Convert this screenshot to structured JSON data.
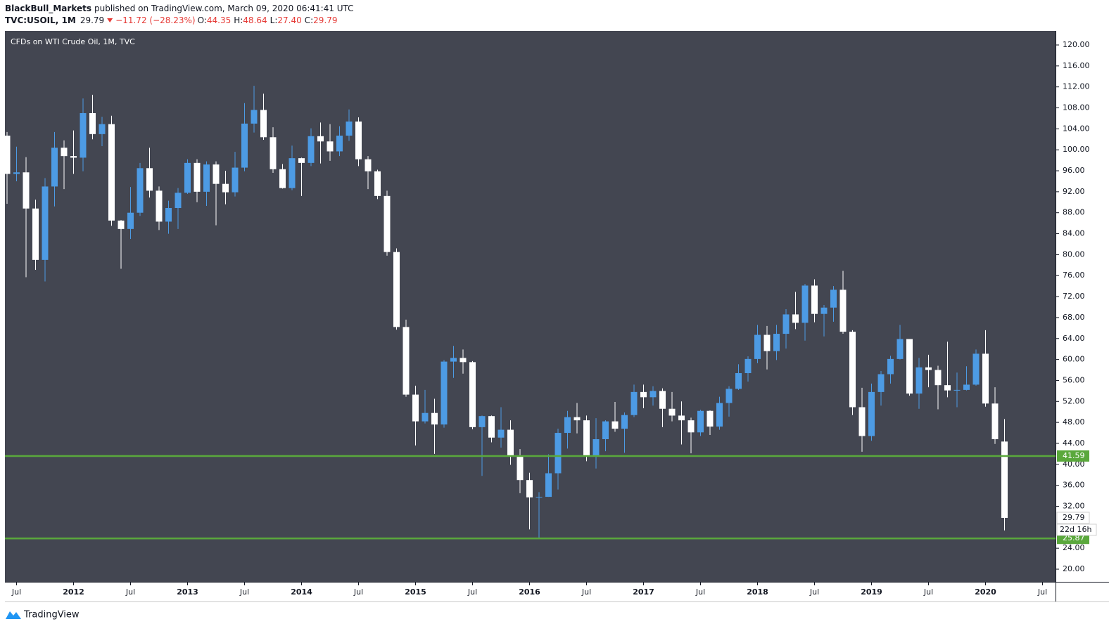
{
  "header": {
    "author": "BlackBull_Markets",
    "published": "published on TradingView.com, March 09, 2020 06:41:41 UTC",
    "symbol": "TVC:USOIL, 1M",
    "price": "29.79",
    "change": "−11.72 (−28.23%)",
    "ohlc": [
      {
        "k": "O:",
        "v": "44.35"
      },
      {
        "k": "H:",
        "v": "48.64"
      },
      {
        "k": "L:",
        "v": "27.40"
      },
      {
        "k": "C:",
        "v": "29.79"
      }
    ]
  },
  "chart_data": {
    "type": "candlestick",
    "title": "CFDs on WTI Crude Oil, 1M, TVC",
    "x": [
      "2011-06",
      "2011-07",
      "2011-08",
      "2011-09",
      "2011-10",
      "2011-11",
      "2011-12",
      "2012-01",
      "2012-02",
      "2012-03",
      "2012-04",
      "2012-05",
      "2012-06",
      "2012-07",
      "2012-08",
      "2012-09",
      "2012-10",
      "2012-11",
      "2012-12",
      "2013-01",
      "2013-02",
      "2013-03",
      "2013-04",
      "2013-05",
      "2013-06",
      "2013-07",
      "2013-08",
      "2013-09",
      "2013-10",
      "2013-11",
      "2013-12",
      "2014-01",
      "2014-02",
      "2014-03",
      "2014-04",
      "2014-05",
      "2014-06",
      "2014-07",
      "2014-08",
      "2014-09",
      "2014-10",
      "2014-11",
      "2014-12",
      "2015-01",
      "2015-02",
      "2015-03",
      "2015-04",
      "2015-05",
      "2015-06",
      "2015-07",
      "2015-08",
      "2015-09",
      "2015-10",
      "2015-11",
      "2015-12",
      "2016-01",
      "2016-02",
      "2016-03",
      "2016-04",
      "2016-05",
      "2016-06",
      "2016-07",
      "2016-08",
      "2016-09",
      "2016-10",
      "2016-11",
      "2016-12",
      "2017-01",
      "2017-02",
      "2017-03",
      "2017-04",
      "2017-05",
      "2017-06",
      "2017-07",
      "2017-08",
      "2017-09",
      "2017-10",
      "2017-11",
      "2017-12",
      "2018-01",
      "2018-02",
      "2018-03",
      "2018-04",
      "2018-05",
      "2018-06",
      "2018-07",
      "2018-08",
      "2018-09",
      "2018-10",
      "2018-11",
      "2018-12",
      "2019-01",
      "2019-02",
      "2019-03",
      "2019-04",
      "2019-05",
      "2019-06",
      "2019-07",
      "2019-08",
      "2019-09",
      "2019-10",
      "2019-11",
      "2019-12",
      "2020-01",
      "2020-02",
      "2020-03"
    ],
    "open": [
      102.7,
      95.4,
      95.7,
      88.8,
      79.0,
      93.0,
      100.4,
      98.8,
      98.5,
      107.0,
      103.0,
      104.9,
      86.5,
      84.9,
      88.0,
      96.5,
      92.2,
      86.3,
      88.9,
      91.8,
      97.5,
      92.0,
      97.2,
      93.5,
      91.9,
      96.6,
      105.0,
      107.6,
      102.4,
      96.3,
      92.7,
      98.4,
      97.5,
      102.6,
      101.6,
      99.7,
      102.7,
      105.4,
      98.2,
      95.9,
      91.2,
      80.5,
      66.2,
      53.3,
      48.2,
      49.8,
      47.6,
      59.6,
      60.3,
      59.5,
      47.1,
      49.2,
      45.1,
      46.6,
      41.7,
      37.0,
      33.7,
      33.8,
      38.3,
      46.0,
      49.0,
      48.4,
      41.6,
      44.8,
      48.2,
      46.8,
      49.4,
      53.8,
      52.8,
      54.0,
      50.6,
      49.3,
      48.4,
      46.1,
      50.2,
      47.2,
      51.7,
      54.4,
      57.4,
      60.1,
      64.7,
      61.6,
      64.9,
      68.6,
      67.0,
      74.1,
      68.7,
      69.9,
      73.3,
      65.3,
      50.9,
      45.4,
      53.8,
      57.2,
      60.1,
      63.9,
      53.5,
      58.5,
      58.0,
      55.1,
      54.1,
      54.2,
      55.2,
      61.1,
      51.6,
      44.35
    ],
    "high": [
      103.4,
      100.6,
      98.6,
      90.5,
      94.6,
      103.4,
      101.8,
      103.7,
      109.8,
      110.5,
      106.3,
      106.5,
      86.6,
      92.9,
      97.5,
      100.4,
      93.0,
      90.3,
      92.7,
      98.2,
      98.2,
      97.8,
      97.8,
      96.0,
      99.6,
      108.9,
      112.2,
      110.7,
      104.3,
      97.3,
      100.8,
      98.5,
      104.1,
      105.2,
      104.9,
      104.5,
      107.7,
      106.2,
      98.8,
      96.2,
      92.2,
      81.2,
      67.6,
      55.0,
      54.2,
      52.5,
      59.9,
      62.6,
      61.9,
      59.7,
      49.3,
      49.3,
      50.9,
      48.4,
      42.9,
      38.4,
      34.7,
      41.9,
      46.8,
      50.2,
      51.7,
      49.3,
      48.8,
      48.4,
      51.9,
      49.9,
      55.2,
      55.2,
      54.9,
      54.5,
      53.8,
      52.0,
      48.9,
      50.4,
      50.3,
      52.9,
      54.9,
      59.1,
      60.6,
      66.6,
      66.4,
      66.6,
      69.6,
      72.9,
      74.4,
      75.3,
      70.4,
      74.0,
      76.9,
      65.6,
      54.6,
      55.4,
      57.8,
      60.7,
      66.6,
      63.9,
      60.3,
      60.9,
      58.8,
      63.4,
      57.5,
      58.7,
      61.9,
      65.6,
      54.7,
      48.64
    ],
    "low": [
      89.7,
      94.0,
      75.7,
      77.1,
      74.9,
      89.2,
      92.5,
      95.4,
      95.9,
      102.0,
      100.7,
      85.5,
      77.3,
      83.0,
      87.4,
      90.9,
      84.7,
      84.0,
      84.9,
      91.6,
      90.0,
      89.3,
      85.6,
      89.6,
      91.1,
      95.9,
      103.3,
      101.9,
      95.6,
      92.6,
      92.3,
      91.2,
      96.9,
      97.4,
      97.9,
      98.8,
      101.7,
      96.9,
      92.5,
      90.6,
      79.8,
      65.7,
      52.9,
      43.6,
      47.8,
      42.0,
      47.0,
      56.5,
      57.3,
      46.7,
      37.8,
      44.2,
      43.2,
      39.9,
      34.5,
      27.6,
      26.0,
      33.8,
      35.2,
      43.0,
      45.9,
      40.6,
      39.2,
      42.5,
      46.2,
      42.2,
      49.0,
      50.7,
      51.2,
      47.1,
      48.2,
      43.8,
      42.1,
      45.4,
      45.6,
      46.6,
      49.1,
      54.2,
      55.8,
      59.3,
      58.1,
      59.9,
      62.1,
      65.8,
      63.6,
      67.1,
      64.4,
      67.2,
      64.9,
      49.4,
      42.4,
      44.5,
      51.2,
      55.4,
      60.0,
      53.1,
      50.6,
      54.7,
      50.5,
      52.8,
      50.9,
      54.1,
      55.0,
      51.0,
      43.9,
      27.4
    ],
    "close": [
      95.4,
      95.7,
      88.8,
      79.0,
      93.0,
      100.4,
      98.8,
      98.5,
      107.0,
      103.0,
      104.9,
      86.5,
      84.9,
      88.0,
      96.5,
      92.2,
      86.3,
      88.9,
      91.8,
      97.5,
      92.0,
      97.2,
      93.5,
      91.9,
      96.6,
      105.0,
      107.6,
      102.4,
      96.3,
      92.7,
      98.4,
      97.5,
      102.6,
      101.6,
      99.7,
      102.7,
      105.4,
      98.2,
      95.9,
      91.2,
      80.5,
      66.2,
      53.3,
      48.2,
      49.8,
      47.6,
      59.6,
      60.3,
      59.5,
      47.1,
      49.2,
      45.1,
      46.6,
      41.7,
      37.0,
      33.7,
      33.8,
      38.3,
      46.0,
      49.0,
      48.4,
      41.6,
      44.8,
      48.2,
      46.8,
      49.4,
      53.8,
      52.8,
      54.0,
      50.6,
      49.3,
      48.4,
      46.1,
      50.2,
      47.2,
      51.7,
      54.4,
      57.4,
      60.1,
      64.7,
      61.6,
      64.9,
      68.6,
      67.0,
      74.1,
      68.7,
      69.9,
      73.3,
      65.3,
      50.9,
      45.4,
      53.8,
      57.2,
      60.1,
      63.9,
      53.5,
      58.5,
      58.0,
      55.1,
      54.1,
      54.2,
      55.2,
      61.1,
      51.6,
      44.8,
      29.79
    ],
    "up_color": "#4d9be4",
    "down_color": "#ffffff",
    "ylim": [
      17.59,
      122.68
    ],
    "yticks": [
      {
        "value": 120,
        "label": "120.00"
      },
      {
        "value": 116,
        "label": "116.00"
      },
      {
        "value": 112,
        "label": "112.00"
      },
      {
        "value": 108,
        "label": "108.00"
      },
      {
        "value": 104,
        "label": "104.00"
      },
      {
        "value": 100,
        "label": "100.00"
      },
      {
        "value": 96,
        "label": "96.00"
      },
      {
        "value": 92,
        "label": "92.00"
      },
      {
        "value": 88,
        "label": "88.00"
      },
      {
        "value": 84,
        "label": "84.00"
      },
      {
        "value": 80,
        "label": "80.00"
      },
      {
        "value": 76,
        "label": "76.00"
      },
      {
        "value": 72,
        "label": "72.00"
      },
      {
        "value": 68,
        "label": "68.00"
      },
      {
        "value": 64,
        "label": "64.00"
      },
      {
        "value": 60,
        "label": "60.00"
      },
      {
        "value": 56,
        "label": "56.00"
      },
      {
        "value": 52,
        "label": "52.00"
      },
      {
        "value": 48,
        "label": "48.00"
      },
      {
        "value": 44,
        "label": "44.00"
      },
      {
        "value": 40,
        "label": "40.00"
      },
      {
        "value": 36,
        "label": "36.00"
      },
      {
        "value": 32,
        "label": "32.00"
      },
      {
        "value": 24,
        "label": "24.00"
      },
      {
        "value": 20,
        "label": "20.00"
      }
    ],
    "xticks": [
      {
        "value": "2011-07",
        "label": "Jul"
      },
      {
        "value": "2012-01",
        "label": "2012"
      },
      {
        "value": "2012-07",
        "label": "Jul"
      },
      {
        "value": "2013-01",
        "label": "2013"
      },
      {
        "value": "2013-07",
        "label": "Jul"
      },
      {
        "value": "2014-01",
        "label": "2014"
      },
      {
        "value": "2014-07",
        "label": "Jul"
      },
      {
        "value": "2015-01",
        "label": "2015"
      },
      {
        "value": "2015-07",
        "label": "Jul"
      },
      {
        "value": "2016-01",
        "label": "2016"
      },
      {
        "value": "2016-07",
        "label": "Jul"
      },
      {
        "value": "2017-01",
        "label": "2017"
      },
      {
        "value": "2017-07",
        "label": "Jul"
      },
      {
        "value": "2018-01",
        "label": "2018"
      },
      {
        "value": "2018-07",
        "label": "Jul"
      },
      {
        "value": "2019-01",
        "label": "2019"
      },
      {
        "value": "2019-07",
        "label": "Jul"
      },
      {
        "value": "2020-01",
        "label": "2020"
      },
      {
        "value": "2020-07",
        "label": "Jul"
      }
    ],
    "hlines": [
      {
        "value": 41.59,
        "color": "#5aa83c"
      },
      {
        "value": 25.87,
        "color": "#5aa83c"
      }
    ],
    "countdown": "22d 16h"
  },
  "footer": {
    "brand": "TradingView"
  }
}
